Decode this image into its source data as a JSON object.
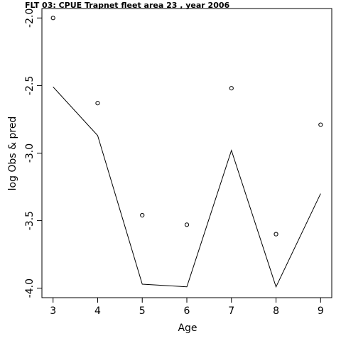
{
  "chart_data": {
    "type": "line",
    "title": "FLT 03:    CPUE       Trapnet   fleet         area         23             , year 2006",
    "xlabel": "Age",
    "ylabel": "log Obs & pred",
    "xlim": [
      2.75,
      9.25
    ],
    "ylim": [
      -4.07,
      -1.93
    ],
    "x_ticks": [
      3,
      4,
      5,
      6,
      7,
      8,
      9
    ],
    "y_ticks": [
      -4.0,
      -3.5,
      -3.0,
      -2.5,
      -2.0
    ],
    "y_tick_labels": [
      "-4.0",
      "-3.5",
      "-3.0",
      "-2.5",
      "-2.0"
    ],
    "x": [
      3,
      4,
      5,
      6,
      7,
      8,
      9
    ],
    "series": [
      {
        "kind": "points",
        "values": [
          -2.0,
          -2.63,
          -3.46,
          -3.53,
          -2.52,
          -3.6,
          -2.79
        ]
      },
      {
        "kind": "line",
        "values": [
          -2.51,
          -2.87,
          -3.97,
          -3.99,
          -2.98,
          -3.99,
          -3.3
        ]
      }
    ]
  }
}
